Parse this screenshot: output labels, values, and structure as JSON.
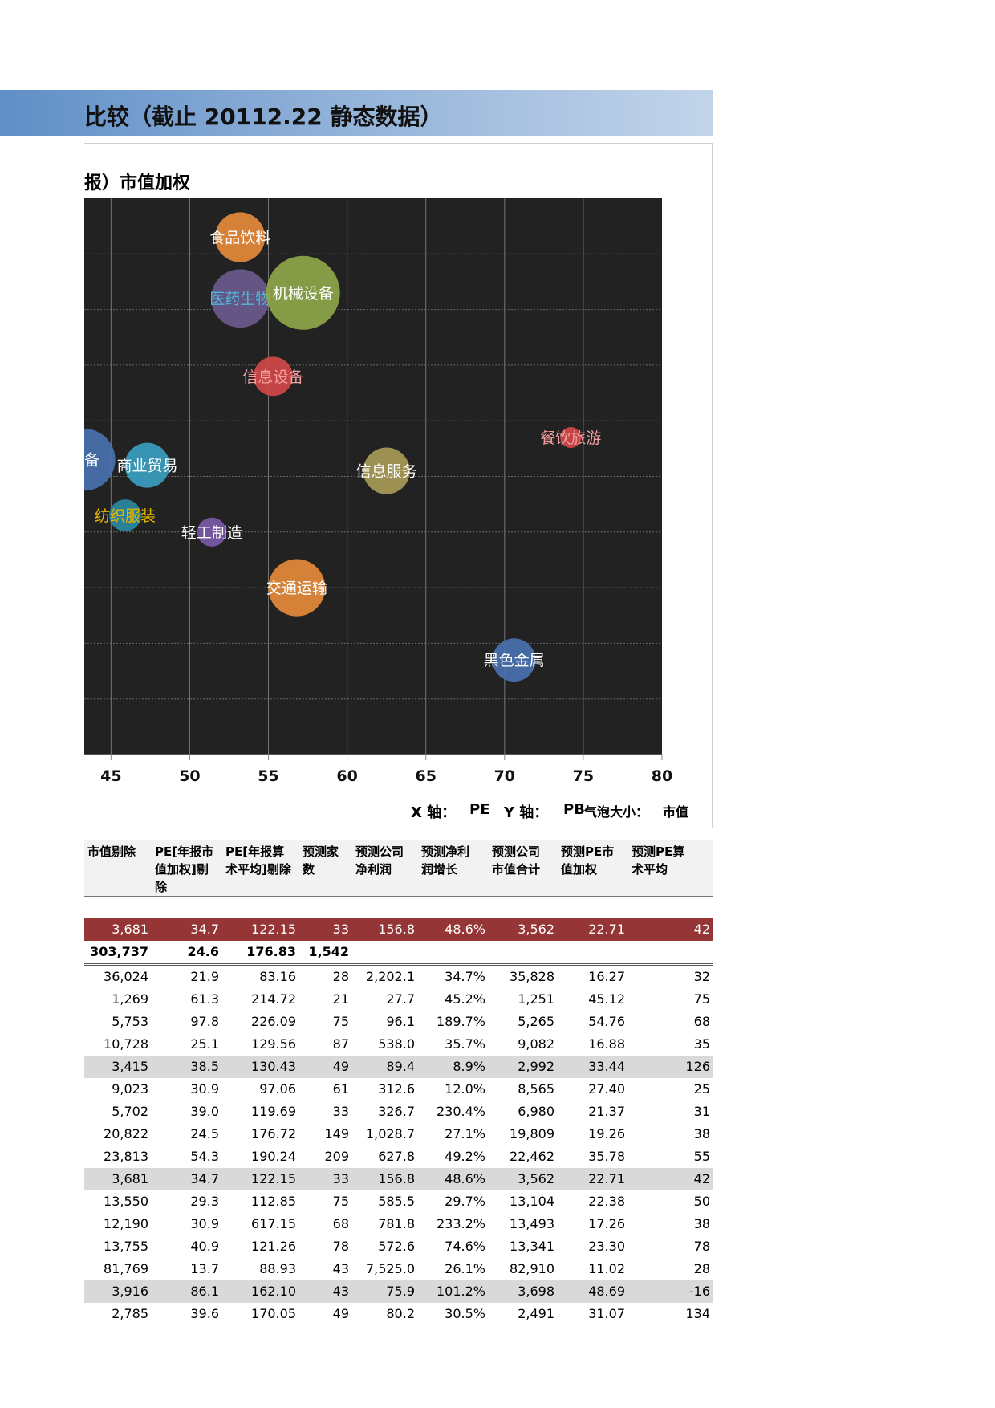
{
  "header": {
    "title": "比较（截止 20112.22 静态数据）"
  },
  "chart_data": {
    "type": "scatter",
    "title": "报）市值加权",
    "xlim": [
      43.3,
      80
    ],
    "ylim": [
      0,
      10
    ],
    "x_ticks": [
      "45",
      "50",
      "55",
      "60",
      "65",
      "70",
      "75",
      "80"
    ],
    "x_tick_values": [
      45,
      50,
      55,
      60,
      65,
      70,
      75,
      80
    ],
    "gridlines": true,
    "background": "#222222",
    "points": [
      {
        "label": "食品饮料",
        "x": 53.2,
        "y": 9.3,
        "size": 13,
        "color": "#e58a3a",
        "label_color": "#ffffff"
      },
      {
        "label": "医药生物",
        "x": 53.2,
        "y": 8.2,
        "size": 19,
        "color": "#6b5a8e",
        "label_color": "#4fb8d8"
      },
      {
        "label": "机械设备",
        "x": 57.2,
        "y": 8.3,
        "size": 33,
        "color": "#8fa64a",
        "label_color": "#ffffff"
      },
      {
        "label": "信息设备",
        "x": 55.3,
        "y": 6.8,
        "size": 7,
        "color": "#d04848",
        "label_color": "#f4a0a0"
      },
      {
        "label": "餐饮旅游",
        "x": 74.2,
        "y": 5.7,
        "size": 1,
        "color": "#d04848",
        "label_color": "#f4a0a0"
      },
      {
        "label": "设备",
        "x": 43.3,
        "y": 5.3,
        "size": 22,
        "color": "#4a72b0",
        "label_color": "#ffffff"
      },
      {
        "label": "商业贸易",
        "x": 47.3,
        "y": 5.2,
        "size": 10,
        "color": "#3aa0c0",
        "label_color": "#ffffff"
      },
      {
        "label": "信息服务",
        "x": 62.5,
        "y": 5.1,
        "size": 11,
        "color": "#a89a58",
        "label_color": "#ffffff"
      },
      {
        "label": "纺织服装",
        "x": 45.9,
        "y": 4.3,
        "size": 4,
        "color": "#2b8aa0",
        "label_color": "#e6b800"
      },
      {
        "label": "轻工制造",
        "x": 51.4,
        "y": 4.0,
        "size": 3,
        "color": "#7a5aa8",
        "label_color": "#ffffff"
      },
      {
        "label": "交通运输",
        "x": 56.8,
        "y": 3.0,
        "size": 18,
        "color": "#e58a3a",
        "label_color": "#ffffff"
      },
      {
        "label": "黑色金属",
        "x": 70.6,
        "y": 1.7,
        "size": 9,
        "color": "#4a72b0",
        "label_color": "#ffffff"
      }
    ],
    "axis_note": {
      "x_label": "X 轴：",
      "x_value": "PE",
      "y_label": "Y 轴：",
      "y_value": "PB",
      "size_label": "气泡大小：",
      "size_value": "市值"
    }
  },
  "table": {
    "headers": [
      [
        "市值剔除"
      ],
      [
        "PE[年报市",
        "值加权]剔除"
      ],
      [
        "PE[年报算",
        "术平均]剔除"
      ],
      [
        "预测家",
        "数"
      ],
      [
        "预测公司",
        "净利润"
      ],
      [
        "预测净利",
        "润增长"
      ],
      [
        "预测公司",
        "市值合计"
      ],
      [
        "预测PE市",
        "值加权"
      ],
      [
        "预测PE算",
        "术平均"
      ]
    ],
    "highlight_row": [
      "3,681",
      "34.7",
      "122.15",
      "33",
      "156.8",
      "48.6%",
      "3,562",
      "22.71",
      "42"
    ],
    "total_row": [
      "303,737",
      "24.6",
      "176.83",
      "1,542",
      "",
      "",
      "",
      "",
      ""
    ],
    "rows": [
      {
        "cells": [
          "36,024",
          "21.9",
          "83.16",
          "28",
          "2,202.1",
          "34.7%",
          "35,828",
          "16.27",
          "32"
        ],
        "shaded": false
      },
      {
        "cells": [
          "1,269",
          "61.3",
          "214.72",
          "21",
          "27.7",
          "45.2%",
          "1,251",
          "45.12",
          "75"
        ],
        "shaded": false
      },
      {
        "cells": [
          "5,753",
          "97.8",
          "226.09",
          "75",
          "96.1",
          "189.7%",
          "5,265",
          "54.76",
          "68"
        ],
        "shaded": false
      },
      {
        "cells": [
          "10,728",
          "25.1",
          "129.56",
          "87",
          "538.0",
          "35.7%",
          "9,082",
          "16.88",
          "35"
        ],
        "shaded": false
      },
      {
        "cells": [
          "3,415",
          "38.5",
          "130.43",
          "49",
          "89.4",
          "8.9%",
          "2,992",
          "33.44",
          "126"
        ],
        "shaded": true
      },
      {
        "cells": [
          "9,023",
          "30.9",
          "97.06",
          "61",
          "312.6",
          "12.0%",
          "8,565",
          "27.40",
          "25"
        ],
        "shaded": false
      },
      {
        "cells": [
          "5,702",
          "39.0",
          "119.69",
          "33",
          "326.7",
          "230.4%",
          "6,980",
          "21.37",
          "31"
        ],
        "shaded": false
      },
      {
        "cells": [
          "20,822",
          "24.5",
          "176.72",
          "149",
          "1,028.7",
          "27.1%",
          "19,809",
          "19.26",
          "38"
        ],
        "shaded": false
      },
      {
        "cells": [
          "23,813",
          "54.3",
          "190.24",
          "209",
          "627.8",
          "49.2%",
          "22,462",
          "35.78",
          "55"
        ],
        "shaded": false
      },
      {
        "cells": [
          "3,681",
          "34.7",
          "122.15",
          "33",
          "156.8",
          "48.6%",
          "3,562",
          "22.71",
          "42"
        ],
        "shaded": true
      },
      {
        "cells": [
          "13,550",
          "29.3",
          "112.85",
          "75",
          "585.5",
          "29.7%",
          "13,104",
          "22.38",
          "50"
        ],
        "shaded": false
      },
      {
        "cells": [
          "12,190",
          "30.9",
          "617.15",
          "68",
          "781.8",
          "233.2%",
          "13,493",
          "17.26",
          "38"
        ],
        "shaded": false
      },
      {
        "cells": [
          "13,755",
          "40.9",
          "121.26",
          "78",
          "572.6",
          "74.6%",
          "13,341",
          "23.30",
          "78"
        ],
        "shaded": false
      },
      {
        "cells": [
          "81,769",
          "13.7",
          "88.93",
          "43",
          "7,525.0",
          "26.1%",
          "82,910",
          "11.02",
          "28"
        ],
        "shaded": false
      },
      {
        "cells": [
          "3,916",
          "86.1",
          "162.10",
          "43",
          "75.9",
          "101.2%",
          "3,698",
          "48.69",
          "-16"
        ],
        "shaded": true
      },
      {
        "cells": [
          "2,785",
          "39.6",
          "170.05",
          "49",
          "80.2",
          "30.5%",
          "2,491",
          "31.07",
          "134"
        ],
        "shaded": false
      }
    ]
  }
}
